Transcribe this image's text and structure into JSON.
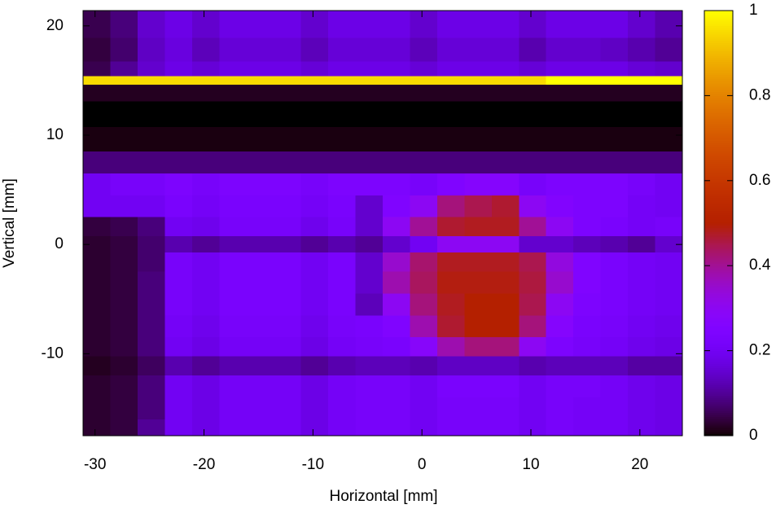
{
  "chart_data": {
    "type": "heatmap",
    "xlabel": "Horizontal [mm]",
    "ylabel": "Vertical [mm]",
    "palette": "gnuplot",
    "xlim": [
      -31.1,
      23.9
    ],
    "ylim": [
      -17.5,
      21.4
    ],
    "zlim": [
      0,
      1
    ],
    "xticks": [
      -30,
      -20,
      -10,
      0,
      10,
      20
    ],
    "yticks": [
      -10,
      0,
      10,
      20
    ],
    "zticks": [
      0,
      0.2,
      0.4,
      0.6,
      0.8,
      1
    ],
    "x": [
      -29.85,
      -27.35,
      -24.85,
      -22.35,
      -19.85,
      -17.35,
      -14.85,
      -12.35,
      -9.85,
      -7.35,
      -4.85,
      -2.35,
      0.15,
      2.65,
      5.15,
      7.65,
      10.15,
      12.65,
      15.15,
      17.65,
      20.15,
      22.65
    ],
    "y": [
      20.15,
      17.65,
      15.8,
      15.0,
      14.2,
      12,
      9.5,
      7.5,
      5.5,
      3.5,
      1.5,
      0,
      -1.5,
      -3.5,
      -5.5,
      -7.5,
      -9.5,
      -11,
      -13,
      -15,
      -17
    ],
    "z": [
      [
        0.05,
        0.08,
        0.15,
        0.18,
        0.15,
        0.18,
        0.18,
        0.18,
        0.15,
        0.18,
        0.18,
        0.18,
        0.15,
        0.18,
        0.18,
        0.18,
        0.15,
        0.18,
        0.18,
        0.18,
        0.15,
        0.12
      ],
      [
        0.04,
        0.07,
        0.14,
        0.17,
        0.13,
        0.16,
        0.16,
        0.16,
        0.13,
        0.16,
        0.16,
        0.16,
        0.13,
        0.16,
        0.16,
        0.16,
        0.12,
        0.15,
        0.15,
        0.14,
        0.12,
        0.1
      ],
      [
        0.05,
        0.1,
        0.15,
        0.18,
        0.16,
        0.18,
        0.18,
        0.18,
        0.16,
        0.18,
        0.18,
        0.18,
        0.16,
        0.18,
        0.18,
        0.18,
        0.16,
        0.18,
        0.18,
        0.18,
        0.16,
        0.15
      ],
      [
        0.95,
        0.95,
        0.95,
        0.95,
        0.95,
        0.95,
        0.95,
        0.95,
        0.95,
        0.95,
        0.95,
        0.95,
        0.95,
        0.95,
        0.95,
        0.95,
        0.95,
        1,
        1,
        1,
        1,
        1
      ],
      [
        0.02,
        0.02,
        0.02,
        0.02,
        0.02,
        0.02,
        0.02,
        0.02,
        0.02,
        0.02,
        0.02,
        0.02,
        0.02,
        0.02,
        0.02,
        0.02,
        0.02,
        0.02,
        0.02,
        0.02,
        0.02,
        0.02
      ],
      [
        0,
        0,
        0,
        0,
        0,
        0,
        0,
        0,
        0,
        0,
        0,
        0,
        0,
        0,
        0,
        0,
        0,
        0,
        0,
        0,
        0,
        0
      ],
      [
        0.01,
        0.01,
        0.01,
        0.01,
        0.01,
        0.01,
        0.01,
        0.01,
        0.01,
        0.01,
        0.01,
        0.01,
        0.01,
        0.01,
        0.01,
        0.01,
        0.01,
        0.01,
        0.01,
        0.01,
        0.01,
        0.01
      ],
      [
        0.08,
        0.08,
        0.08,
        0.08,
        0.08,
        0.08,
        0.08,
        0.08,
        0.08,
        0.08,
        0.08,
        0.08,
        0.08,
        0.08,
        0.08,
        0.08,
        0.08,
        0.08,
        0.08,
        0.08,
        0.08,
        0.08
      ],
      [
        0.2,
        0.22,
        0.22,
        0.24,
        0.22,
        0.24,
        0.24,
        0.24,
        0.22,
        0.24,
        0.24,
        0.24,
        0.22,
        0.25,
        0.27,
        0.27,
        0.22,
        0.24,
        0.24,
        0.24,
        0.22,
        0.2
      ],
      [
        0.2,
        0.2,
        0.2,
        0.23,
        0.21,
        0.23,
        0.23,
        0.23,
        0.21,
        0.23,
        0.15,
        0.25,
        0.3,
        0.42,
        0.45,
        0.47,
        0.3,
        0.26,
        0.24,
        0.24,
        0.21,
        0.2
      ],
      [
        0.04,
        0.05,
        0.08,
        0.2,
        0.19,
        0.22,
        0.22,
        0.22,
        0.19,
        0.22,
        0.15,
        0.3,
        0.4,
        0.47,
        0.48,
        0.48,
        0.4,
        0.3,
        0.24,
        0.23,
        0.21,
        0.22
      ],
      [
        0.03,
        0.04,
        0.07,
        0.12,
        0.1,
        0.12,
        0.12,
        0.12,
        0.1,
        0.12,
        0.1,
        0.15,
        0.2,
        0.3,
        0.3,
        0.3,
        0.15,
        0.15,
        0.13,
        0.12,
        0.1,
        0.15
      ],
      [
        0.03,
        0.04,
        0.07,
        0.22,
        0.2,
        0.23,
        0.23,
        0.23,
        0.2,
        0.23,
        0.15,
        0.35,
        0.43,
        0.48,
        0.48,
        0.48,
        0.45,
        0.33,
        0.25,
        0.23,
        0.21,
        0.2
      ],
      [
        0.03,
        0.04,
        0.08,
        0.22,
        0.2,
        0.23,
        0.23,
        0.23,
        0.2,
        0.23,
        0.15,
        0.38,
        0.44,
        0.49,
        0.49,
        0.49,
        0.46,
        0.35,
        0.25,
        0.23,
        0.21,
        0.2
      ],
      [
        0.03,
        0.04,
        0.08,
        0.22,
        0.2,
        0.23,
        0.23,
        0.23,
        0.2,
        0.23,
        0.13,
        0.3,
        0.42,
        0.48,
        0.5,
        0.5,
        0.45,
        0.3,
        0.24,
        0.23,
        0.21,
        0.2
      ],
      [
        0.03,
        0.04,
        0.08,
        0.21,
        0.19,
        0.22,
        0.22,
        0.22,
        0.19,
        0.22,
        0.23,
        0.25,
        0.38,
        0.47,
        0.5,
        0.5,
        0.42,
        0.27,
        0.23,
        0.22,
        0.2,
        0.19
      ],
      [
        0.03,
        0.04,
        0.08,
        0.2,
        0.18,
        0.21,
        0.21,
        0.21,
        0.18,
        0.21,
        0.22,
        0.23,
        0.28,
        0.38,
        0.42,
        0.42,
        0.3,
        0.24,
        0.22,
        0.21,
        0.19,
        0.18
      ],
      [
        0.02,
        0.03,
        0.06,
        0.12,
        0.1,
        0.12,
        0.12,
        0.12,
        0.1,
        0.12,
        0.13,
        0.13,
        0.12,
        0.14,
        0.14,
        0.14,
        0.12,
        0.13,
        0.13,
        0.13,
        0.11,
        0.11
      ],
      [
        0.03,
        0.04,
        0.08,
        0.2,
        0.18,
        0.21,
        0.21,
        0.21,
        0.18,
        0.21,
        0.22,
        0.22,
        0.2,
        0.23,
        0.23,
        0.23,
        0.2,
        0.22,
        0.22,
        0.21,
        0.19,
        0.18
      ],
      [
        0.03,
        0.04,
        0.08,
        0.2,
        0.18,
        0.21,
        0.21,
        0.21,
        0.18,
        0.21,
        0.22,
        0.22,
        0.2,
        0.22,
        0.22,
        0.22,
        0.2,
        0.22,
        0.21,
        0.21,
        0.19,
        0.18
      ],
      [
        0.03,
        0.04,
        0.1,
        0.2,
        0.18,
        0.21,
        0.21,
        0.21,
        0.18,
        0.21,
        0.22,
        0.22,
        0.2,
        0.22,
        0.22,
        0.22,
        0.2,
        0.22,
        0.21,
        0.21,
        0.19,
        0.18
      ]
    ]
  }
}
